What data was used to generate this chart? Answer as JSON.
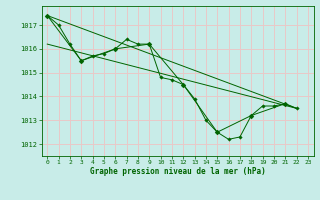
{
  "background_color": "#c8ece8",
  "grid_color": "#e8c8c8",
  "line_color": "#006400",
  "axis_color": "#006400",
  "title": "Graphe pression niveau de la mer (hPa)",
  "xlim": [
    -0.5,
    23.5
  ],
  "ylim": [
    1011.5,
    1017.8
  ],
  "yticks": [
    1012,
    1013,
    1014,
    1015,
    1016,
    1017
  ],
  "xticks": [
    0,
    1,
    2,
    3,
    4,
    5,
    6,
    7,
    8,
    9,
    10,
    11,
    12,
    13,
    14,
    15,
    16,
    17,
    18,
    19,
    20,
    21,
    22,
    23
  ],
  "series": [
    {
      "x": [
        0,
        1,
        2,
        3,
        4,
        5,
        6,
        7,
        8,
        9,
        10,
        11,
        12,
        13,
        14,
        15,
        16,
        17,
        18,
        19,
        20,
        21,
        22
      ],
      "y": [
        1017.4,
        1017.0,
        1016.2,
        1015.5,
        1015.7,
        1015.8,
        1016.0,
        1016.4,
        1016.2,
        1016.2,
        1014.8,
        1014.7,
        1014.5,
        1013.9,
        1013.0,
        1012.5,
        1012.2,
        1012.3,
        1013.2,
        1013.6,
        1013.6,
        1013.7,
        1013.5
      ]
    },
    {
      "x": [
        0,
        3,
        6,
        9,
        12,
        15,
        18,
        21
      ],
      "y": [
        1017.4,
        1015.5,
        1016.0,
        1016.2,
        1014.5,
        1012.5,
        1013.2,
        1013.7
      ]
    },
    {
      "x": [
        0,
        22
      ],
      "y": [
        1017.4,
        1013.5
      ]
    },
    {
      "x": [
        0,
        22
      ],
      "y": [
        1016.2,
        1013.5
      ]
    }
  ]
}
